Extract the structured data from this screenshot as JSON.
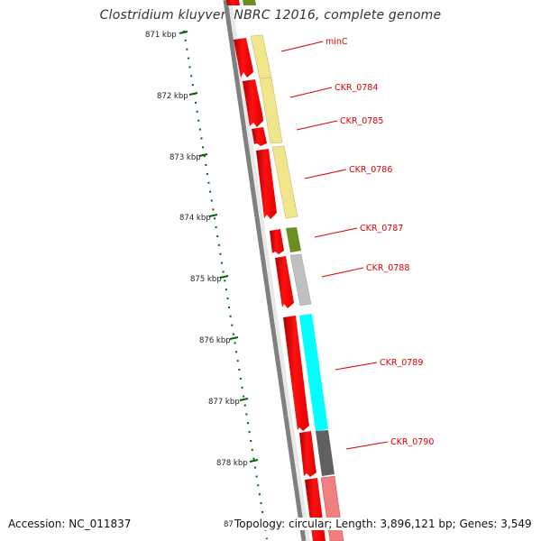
{
  "title": "Clostridium kluyveri NBRC 12016, complete genome",
  "accession": "Accession: NC_011837",
  "topology": "Topology: circular; Length: 3,896,121 bp; Genes: 3,549",
  "ticks": [
    "871 kbp",
    "872 kbp",
    "873 kbp",
    "874 kbp",
    "875 kbp",
    "876 kbp",
    "877 kbp",
    "878 kbp",
    "87"
  ],
  "genes": [
    "minC",
    "CKR_0784",
    "CKR_0785",
    "CKR_0786",
    "CKR_0787",
    "CKR_0788",
    "CKR_0789",
    "CKR_0790"
  ],
  "colors": {
    "cds_strand": "#ff0000",
    "cog_yellow": "#f0e68c",
    "cog_olive": "#6b8e23",
    "cog_grey": "#c0c0c0",
    "cog_cyan": "#00ffff",
    "cog_dark": "#606060",
    "cog_pink": "#f08080",
    "backbone": "#808080",
    "scale": "#006400",
    "label": "#dd0000"
  }
}
